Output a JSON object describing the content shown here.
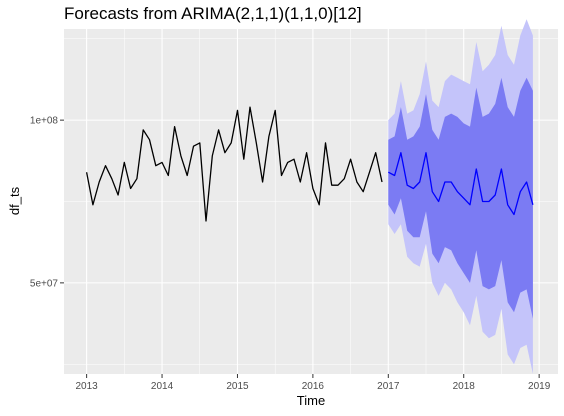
{
  "chart_data": {
    "type": "line",
    "title": "Forecasts from ARIMA(2,1,1)(1,1,0)[12]",
    "xlabel": "Time",
    "ylabel": "df_ts",
    "x_ticks": [
      2013,
      2014,
      2015,
      2016,
      2017,
      2018,
      2019
    ],
    "y_ticks": [
      {
        "value": 50000000,
        "label": "5e+07"
      },
      {
        "value": 100000000,
        "label": "1e+08"
      }
    ],
    "xlim": [
      2012.7,
      2019.25
    ],
    "ylim": [
      22000000,
      128000000
    ],
    "grid": true,
    "colors": {
      "panel": "#ebebeb",
      "grid": "#ffffff",
      "history": "#000000",
      "forecast": "#0000ff",
      "band_80": "#7b7bf3",
      "band_95": "#c4c4fa"
    },
    "series": [
      {
        "role": "history",
        "start": 2013.0,
        "frequency": 12,
        "values": [
          84,
          74,
          81,
          86,
          82,
          77,
          87,
          79,
          82,
          97,
          94,
          86,
          87,
          83,
          98,
          89,
          83,
          92,
          93,
          69,
          89,
          97,
          90,
          93,
          103,
          88,
          104,
          93,
          81,
          95,
          103,
          83,
          87,
          88,
          81,
          90,
          79,
          74,
          93,
          80,
          80,
          82,
          88,
          81,
          78,
          84,
          90,
          81
        ]
      },
      {
        "role": "forecast",
        "start": 2017.0,
        "frequency": 12,
        "values": [
          84,
          83,
          90,
          80,
          79,
          81,
          90,
          78,
          75,
          81,
          81,
          78,
          76,
          74,
          85,
          75,
          75,
          77,
          85,
          74,
          71,
          78,
          81,
          74
        ],
        "lo80": [
          74,
          71,
          76,
          66,
          64,
          64,
          72,
          59,
          56,
          61,
          60,
          56,
          53,
          50,
          60,
          49,
          48,
          49,
          57,
          44,
          41,
          47,
          48,
          39
        ],
        "hi80": [
          94,
          95,
          104,
          94,
          95,
          98,
          108,
          97,
          94,
          101,
          102,
          101,
          99,
          98,
          110,
          101,
          102,
          105,
          113,
          104,
          101,
          109,
          113,
          109
        ],
        "lo95": [
          68,
          65,
          68,
          58,
          56,
          55,
          62,
          50,
          46,
          50,
          48,
          44,
          41,
          37,
          46,
          35,
          33,
          34,
          42,
          28,
          25,
          30,
          31,
          22
        ],
        "hi95": [
          100,
          102,
          112,
          102,
          103,
          108,
          118,
          106,
          104,
          112,
          114,
          113,
          112,
          111,
          124,
          115,
          117,
          120,
          129,
          120,
          117,
          126,
          131,
          126
        ]
      }
    ],
    "unit_multiplier": 1000000
  }
}
